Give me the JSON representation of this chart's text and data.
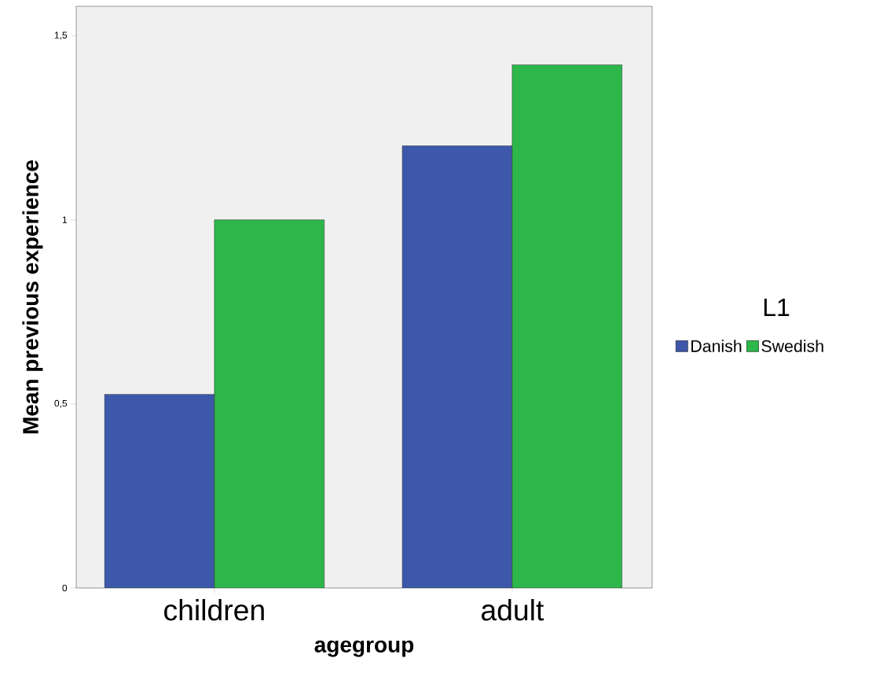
{
  "chart_data": {
    "type": "bar",
    "xlabel": "agegroup",
    "ylabel": "Mean previous experience",
    "legend_title": "L1",
    "categories": [
      "children",
      "adult"
    ],
    "series": [
      {
        "name": "Danish",
        "color": "#3d58aa",
        "values": [
          0.526,
          1.201
        ]
      },
      {
        "name": "Swedish",
        "color": "#2db74a",
        "values": [
          1.0,
          1.421
        ]
      }
    ],
    "ylim": [
      0,
      1.58
    ],
    "yticks": [
      0,
      {
        "value": 0.5,
        "label": "0,5"
      },
      1,
      {
        "value": 1.5,
        "label": "1,5"
      }
    ],
    "grid": false,
    "legend": "right"
  }
}
